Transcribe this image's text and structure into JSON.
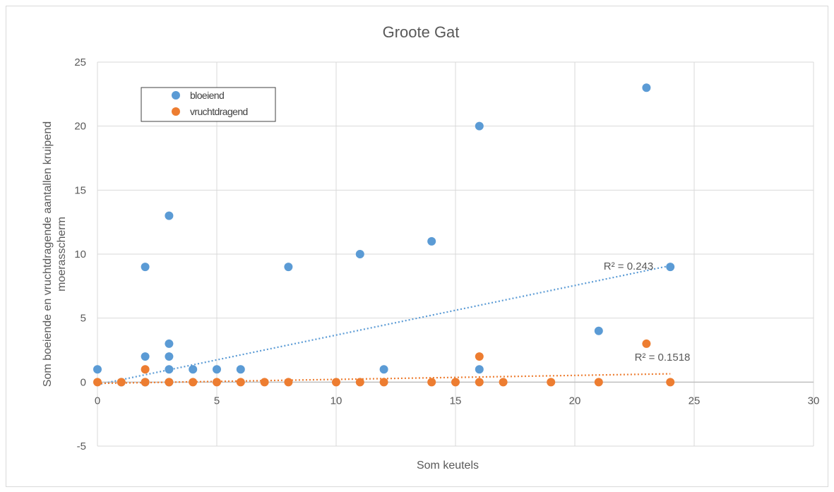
{
  "chart_data": {
    "type": "scatter",
    "title": "Groote Gat",
    "xlabel": "Som keutels",
    "ylabel": [
      "Som boeiende en vruchtdragende aantallen kruipend",
      "moerasscherm"
    ],
    "xlim": [
      0,
      30
    ],
    "ylim": [
      -5,
      25
    ],
    "xticks": [
      0,
      5,
      10,
      15,
      20,
      25,
      30
    ],
    "yticks": [
      -5,
      0,
      5,
      10,
      15,
      20,
      25
    ],
    "grid": true,
    "legend_position": "top-left",
    "series": [
      {
        "name": "bloeiend",
        "color": "#5b9bd5",
        "points": [
          [
            0,
            1
          ],
          [
            1,
            0
          ],
          [
            2,
            9
          ],
          [
            2,
            2
          ],
          [
            2,
            0
          ],
          [
            3,
            13
          ],
          [
            3,
            3
          ],
          [
            3,
            2
          ],
          [
            3,
            1
          ],
          [
            3,
            0
          ],
          [
            4,
            1
          ],
          [
            5,
            1
          ],
          [
            6,
            1
          ],
          [
            8,
            9
          ],
          [
            11,
            10
          ],
          [
            12,
            1
          ],
          [
            14,
            11
          ],
          [
            16,
            20
          ],
          [
            16,
            1
          ],
          [
            21,
            4
          ],
          [
            23,
            23
          ],
          [
            24,
            9
          ]
        ],
        "trendline": {
          "from": [
            0,
            -0.2
          ],
          "to": [
            24,
            9.1
          ],
          "r2_label": "R² = 0.243"
        }
      },
      {
        "name": "vruchtdragend",
        "color": "#ed7d31",
        "points": [
          [
            0,
            0
          ],
          [
            1,
            0
          ],
          [
            2,
            1
          ],
          [
            2,
            0
          ],
          [
            3,
            0
          ],
          [
            4,
            0
          ],
          [
            5,
            0
          ],
          [
            6,
            0
          ],
          [
            7,
            0
          ],
          [
            8,
            0
          ],
          [
            10,
            0
          ],
          [
            11,
            0
          ],
          [
            12,
            0
          ],
          [
            14,
            0
          ],
          [
            15,
            0
          ],
          [
            16,
            2
          ],
          [
            16,
            0
          ],
          [
            17,
            0
          ],
          [
            19,
            0
          ],
          [
            21,
            0
          ],
          [
            23,
            3
          ],
          [
            24,
            0
          ]
        ],
        "trendline": {
          "from": [
            0,
            -0.1
          ],
          "to": [
            24,
            0.65
          ],
          "r2_label": "R² = 0.1518"
        }
      }
    ]
  }
}
